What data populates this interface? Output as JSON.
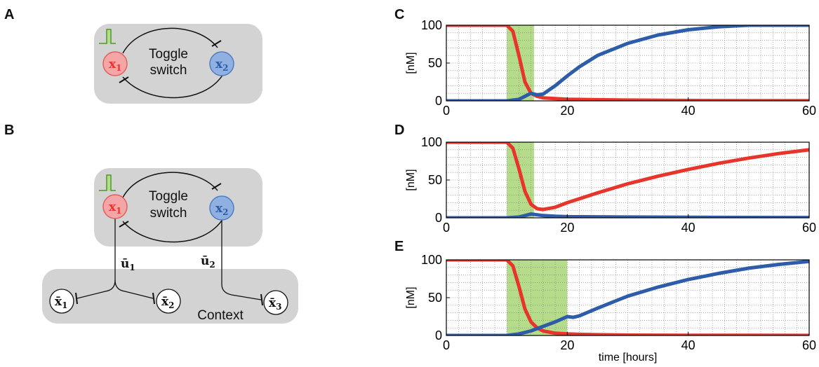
{
  "panels": {
    "A": "A",
    "B": "B",
    "C": "C",
    "D": "D",
    "E": "E"
  },
  "toggle_switch": {
    "line1": "Toggle",
    "line2": "switch"
  },
  "nodes": {
    "x1": "x",
    "x1_sub": "1",
    "x2": "x",
    "x2_sub": "2"
  },
  "context": {
    "label": "Context",
    "u1": "ū",
    "u1_sub": "1",
    "u2": "ū",
    "u2_sub": "2",
    "xb1": "x̄",
    "xb1_sub": "1",
    "xb2": "x̄",
    "xb2_sub": "2",
    "xb3": "x̄",
    "xb3_sub": "3"
  },
  "colors": {
    "red": "#e8352b",
    "blue": "#2d5ca8",
    "shade": "#b5dc8a",
    "box": "#d3d3d3",
    "node_red": "#f4a6a6",
    "node_blue": "#8fb0e0"
  },
  "chart_data": [
    {
      "type": "line",
      "panel": "C",
      "ylabel": "[nM]",
      "xlim": [
        0,
        60
      ],
      "ylim": [
        0,
        100
      ],
      "xticks": [
        0,
        20,
        40,
        60
      ],
      "yticks": [
        0,
        50,
        100
      ],
      "grid": true,
      "shaded_interval": [
        10,
        14.5
      ],
      "series": [
        {
          "color": "red",
          "x": [
            0,
            10,
            11,
            12,
            13,
            14,
            15,
            16,
            18,
            20,
            25,
            30,
            40,
            50,
            60
          ],
          "y": [
            100,
            100,
            92,
            60,
            25,
            10,
            6,
            4,
            3,
            2,
            1.5,
            1,
            0.5,
            0.3,
            0.2
          ]
        },
        {
          "color": "blue",
          "x": [
            0,
            10,
            12,
            13,
            14,
            15,
            16,
            18,
            20,
            22,
            25,
            30,
            35,
            40,
            45,
            50,
            55,
            60
          ],
          "y": [
            0,
            0,
            2,
            6,
            10,
            8,
            9,
            20,
            33,
            45,
            60,
            76,
            87,
            94,
            98,
            100,
            100,
            100
          ]
        }
      ]
    },
    {
      "type": "line",
      "panel": "D",
      "ylabel": "[nM]",
      "xlim": [
        0,
        60
      ],
      "ylim": [
        0,
        100
      ],
      "xticks": [
        0,
        20,
        40,
        60
      ],
      "yticks": [
        0,
        50,
        100
      ],
      "grid": true,
      "shaded_interval": [
        10,
        14.5
      ],
      "series": [
        {
          "color": "red",
          "x": [
            0,
            10,
            11,
            12,
            13,
            14,
            15,
            16,
            18,
            20,
            25,
            30,
            35,
            40,
            45,
            50,
            55,
            60
          ],
          "y": [
            100,
            100,
            92,
            65,
            35,
            18,
            12,
            11,
            14,
            20,
            33,
            45,
            55,
            64,
            72,
            79,
            85,
            90
          ]
        },
        {
          "color": "blue",
          "x": [
            0,
            10,
            12,
            13,
            14,
            15,
            16,
            18,
            20,
            30,
            40,
            50,
            60
          ],
          "y": [
            0,
            0,
            1,
            3,
            5,
            4,
            3,
            2,
            1.5,
            1,
            0.7,
            0.5,
            0.4
          ]
        }
      ]
    },
    {
      "type": "line",
      "panel": "E",
      "xlabel": "time [hours]",
      "ylabel": "[nM]",
      "xlim": [
        0,
        60
      ],
      "ylim": [
        0,
        100
      ],
      "xticks": [
        0,
        20,
        40,
        60
      ],
      "yticks": [
        0,
        50,
        100
      ],
      "grid": true,
      "shaded_interval": [
        10,
        20
      ],
      "series": [
        {
          "color": "red",
          "x": [
            0,
            10,
            11,
            12,
            13,
            14,
            15,
            16,
            18,
            20,
            22,
            25,
            30,
            40,
            50,
            60
          ],
          "y": [
            100,
            100,
            92,
            65,
            35,
            18,
            10,
            6,
            3,
            2,
            1.5,
            1,
            0.5,
            0.3,
            0.2,
            0.1
          ]
        },
        {
          "color": "blue",
          "x": [
            0,
            10,
            12,
            14,
            16,
            18,
            20,
            21,
            22,
            25,
            30,
            35,
            40,
            45,
            50,
            55,
            60
          ],
          "y": [
            0,
            0,
            2,
            6,
            12,
            18,
            25,
            24,
            26,
            36,
            52,
            64,
            74,
            82,
            89,
            94,
            98
          ]
        }
      ]
    }
  ]
}
